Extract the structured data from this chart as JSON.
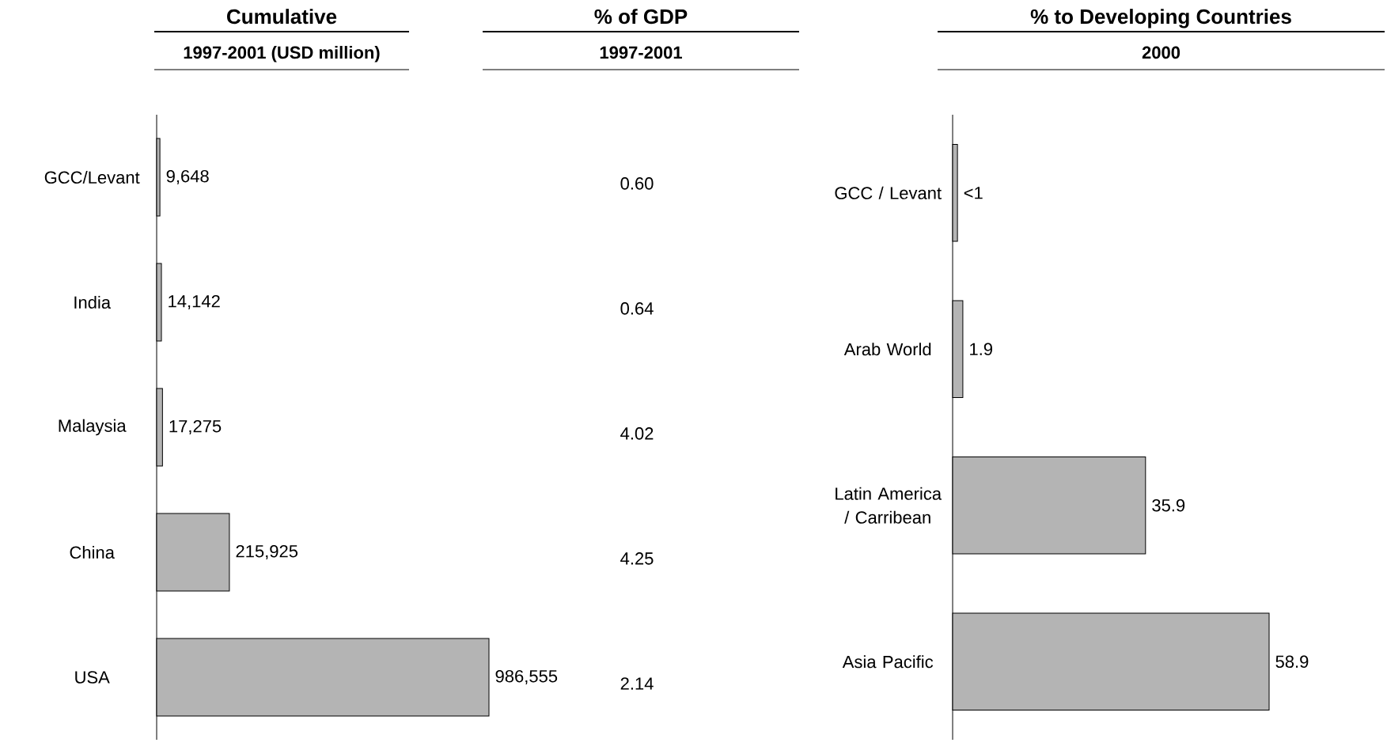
{
  "chart_data": [
    {
      "type": "bar",
      "orientation": "horizontal",
      "title": "Cumulative",
      "subtitle": "1997-2001 (USD million)",
      "categories": [
        "GCC/Levant",
        "India",
        "Malaysia",
        "China",
        "USA"
      ],
      "values": [
        9648,
        14142,
        17275,
        215925,
        986555
      ],
      "value_labels": [
        "9,648",
        "14,142",
        "17,275",
        "215,925",
        "986,555"
      ],
      "color": "#b4b4b4"
    },
    {
      "type": "other",
      "title": "% of GDP",
      "subtitle": "1997-2001",
      "categories": [
        null,
        null,
        null,
        null,
        null
      ],
      "values": [
        0.6,
        0.64,
        4.02,
        4.25,
        2.14
      ],
      "value_labels": [
        "0.60",
        "0.64",
        "4.02",
        "4.25",
        "2.14"
      ]
    },
    {
      "type": "bar",
      "orientation": "horizontal",
      "title": "% to Developing Countries",
      "subtitle": "2000",
      "categories": [
        "GCC / Levant",
        "Arab World",
        "Latin America / Carribean",
        "Asia Pacific"
      ],
      "values": [
        0.9,
        1.9,
        35.9,
        58.9
      ],
      "value_labels": [
        "<1",
        "1.9",
        "35.9",
        "58.9"
      ],
      "color": "#b4b4b4"
    }
  ]
}
